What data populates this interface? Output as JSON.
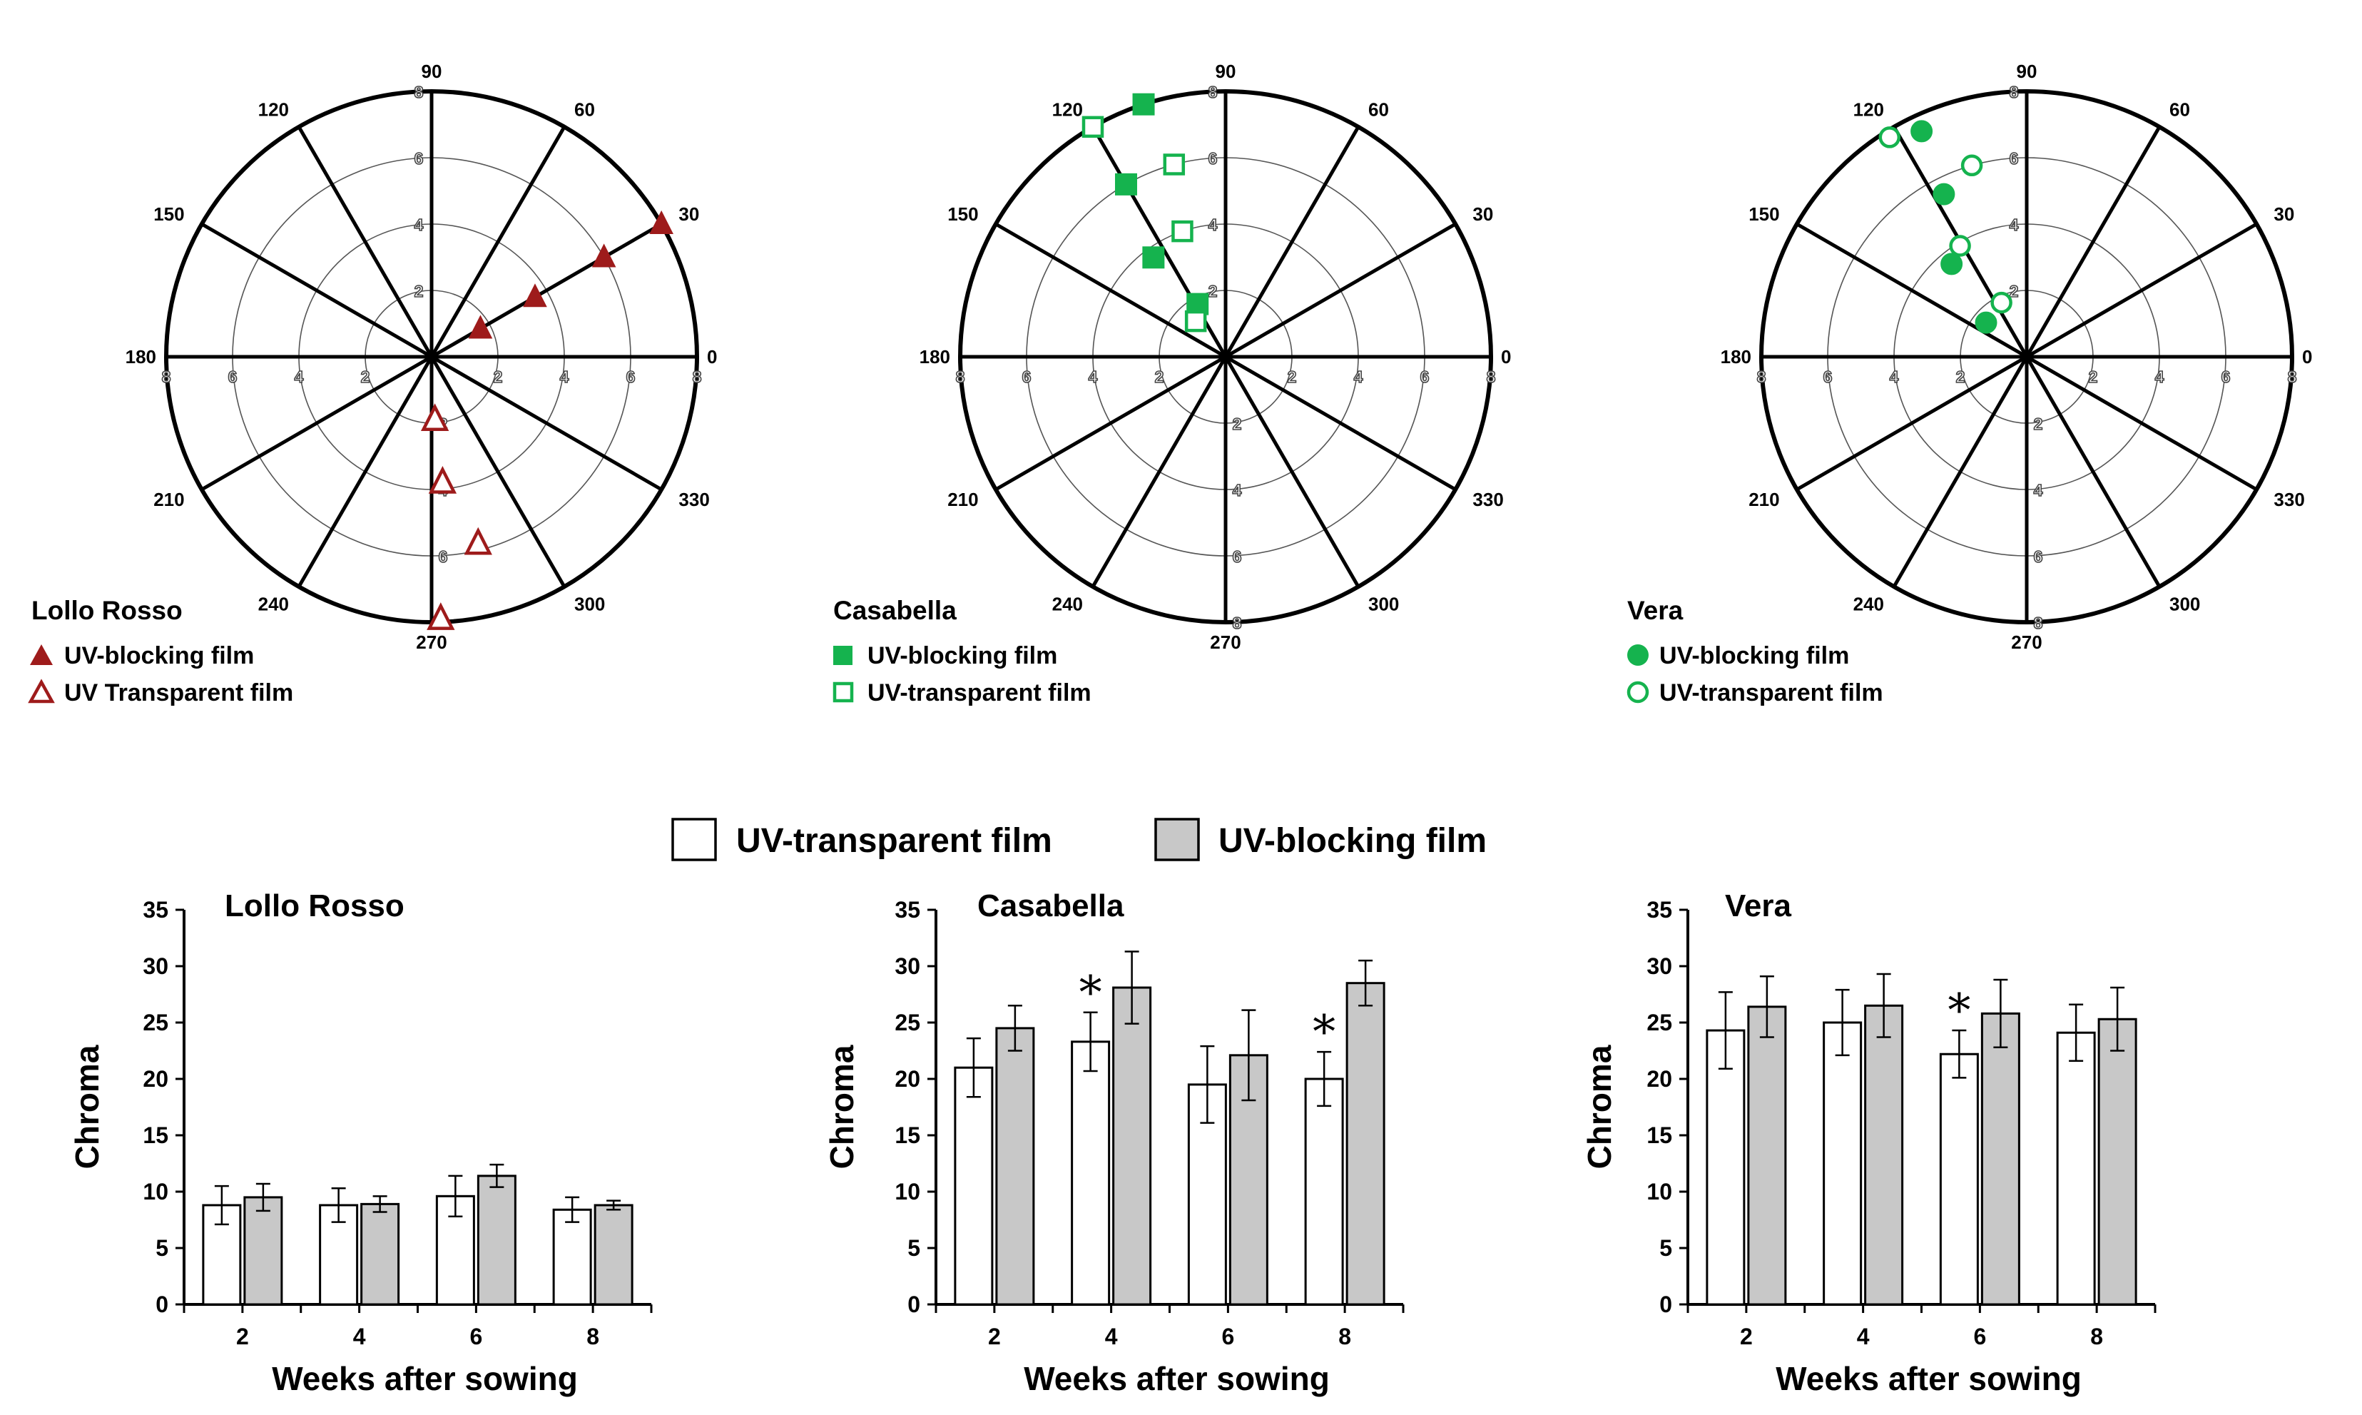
{
  "polar_legends": [
    {
      "title": "Lollo Rosso",
      "blocking": "UV-blocking film",
      "transparent": "UV Transparent film"
    },
    {
      "title": "Casabella",
      "blocking": "UV-blocking film",
      "transparent": "UV-transparent film"
    },
    {
      "title": "Vera",
      "blocking": "UV-blocking film",
      "transparent": "UV-transparent film"
    }
  ],
  "bar_legend": {
    "transparent": "UV-transparent film",
    "blocking": "UV-blocking film"
  },
  "colors": {
    "lollo": "#9e1b1b",
    "green": "#15b34e",
    "bar_transparent": "#ffffff",
    "bar_blocking": "#c8c8c8"
  },
  "chart_data": [
    {
      "type": "scatter",
      "coordinate_system": "polar",
      "title": "Lollo Rosso",
      "angle_labels": [
        "0",
        "30",
        "60",
        "90",
        "120",
        "150",
        "180",
        "210",
        "240",
        "270",
        "300",
        "330"
      ],
      "radial_ticks": [
        "2",
        "4",
        "6",
        "8"
      ],
      "radial_max": 8,
      "marker": "triangle",
      "color": "#9e1b1b",
      "series": [
        {
          "name": "UV-blocking film",
          "filled": true,
          "points": [
            {
              "r": 1.7,
              "angle": 30
            },
            {
              "r": 3.6,
              "angle": 30
            },
            {
              "r": 6.0,
              "angle": 30
            },
            {
              "r": 8.0,
              "angle": 30
            }
          ]
        },
        {
          "name": "UV Transparent film",
          "filled": false,
          "points": [
            {
              "r": 1.9,
              "angle": 273
            },
            {
              "r": 3.8,
              "angle": 275
            },
            {
              "r": 5.8,
              "angle": 284
            },
            {
              "r": 7.9,
              "angle": 272
            }
          ]
        }
      ]
    },
    {
      "type": "scatter",
      "coordinate_system": "polar",
      "title": "Casabella",
      "angle_labels": [
        "0",
        "30",
        "60",
        "90",
        "120",
        "150",
        "180",
        "210",
        "240",
        "270",
        "300",
        "330"
      ],
      "radial_ticks": [
        "2",
        "4",
        "6",
        "8"
      ],
      "radial_max": 8,
      "marker": "square",
      "color": "#15b34e",
      "series": [
        {
          "name": "UV-blocking film",
          "filled": true,
          "points": [
            {
              "r": 1.8,
              "angle": 118
            },
            {
              "r": 3.7,
              "angle": 126
            },
            {
              "r": 6.0,
              "angle": 120
            },
            {
              "r": 8.0,
              "angle": 108
            }
          ]
        },
        {
          "name": "UV-transparent film",
          "filled": false,
          "points": [
            {
              "r": 1.4,
              "angle": 130
            },
            {
              "r": 4.0,
              "angle": 109
            },
            {
              "r": 6.0,
              "angle": 105
            },
            {
              "r": 8.0,
              "angle": 120
            }
          ]
        }
      ]
    },
    {
      "type": "scatter",
      "coordinate_system": "polar",
      "title": "Vera",
      "angle_labels": [
        "0",
        "30",
        "60",
        "90",
        "120",
        "150",
        "180",
        "210",
        "240",
        "270",
        "300",
        "330"
      ],
      "radial_ticks": [
        "2",
        "4",
        "6",
        "8"
      ],
      "radial_max": 8,
      "marker": "circle",
      "color": "#15b34e",
      "series": [
        {
          "name": "UV-blocking film",
          "filled": true,
          "points": [
            {
              "r": 1.6,
              "angle": 140
            },
            {
              "r": 3.6,
              "angle": 129
            },
            {
              "r": 5.5,
              "angle": 117
            },
            {
              "r": 7.5,
              "angle": 115
            }
          ]
        },
        {
          "name": "UV-transparent film",
          "filled": false,
          "points": [
            {
              "r": 1.8,
              "angle": 115
            },
            {
              "r": 3.9,
              "angle": 121
            },
            {
              "r": 6.0,
              "angle": 106
            },
            {
              "r": 7.8,
              "angle": 122
            }
          ]
        }
      ]
    },
    {
      "type": "bar",
      "title": "Lollo Rosso",
      "xlabel": "Weeks after sowing",
      "ylabel": "Chroma",
      "categories": [
        "2",
        "4",
        "6",
        "8"
      ],
      "ylim": [
        0,
        35
      ],
      "yticks": [
        "0",
        "5",
        "10",
        "15",
        "20",
        "25",
        "30",
        "35"
      ],
      "series": [
        {
          "name": "UV-transparent film",
          "values": [
            8.8,
            8.8,
            9.6,
            8.4
          ],
          "errors": [
            1.7,
            1.5,
            1.8,
            1.1
          ]
        },
        {
          "name": "UV-blocking film",
          "values": [
            9.5,
            8.9,
            11.4,
            8.8
          ],
          "errors": [
            1.2,
            0.7,
            1.0,
            0.4
          ]
        }
      ],
      "significance": []
    },
    {
      "type": "bar",
      "title": "Casabella",
      "xlabel": "Weeks after sowing",
      "ylabel": "Chroma",
      "categories": [
        "2",
        "4",
        "6",
        "8"
      ],
      "ylim": [
        0,
        35
      ],
      "yticks": [
        "0",
        "5",
        "10",
        "15",
        "20",
        "25",
        "30",
        "35"
      ],
      "series": [
        {
          "name": "UV-transparent film",
          "values": [
            21.0,
            23.3,
            19.5,
            20.0
          ],
          "errors": [
            2.6,
            2.6,
            3.4,
            2.4
          ]
        },
        {
          "name": "UV-blocking film",
          "values": [
            24.5,
            28.1,
            22.1,
            28.5
          ],
          "errors": [
            2.0,
            3.2,
            4.0,
            2.0
          ]
        }
      ],
      "significance": [
        {
          "category": "4",
          "label": "*"
        },
        {
          "category": "8",
          "label": "*"
        }
      ]
    },
    {
      "type": "bar",
      "title": "Vera",
      "xlabel": "Weeks after sowing",
      "ylabel": "Chroma",
      "categories": [
        "2",
        "4",
        "6",
        "8"
      ],
      "ylim": [
        0,
        35
      ],
      "yticks": [
        "0",
        "5",
        "10",
        "15",
        "20",
        "25",
        "30",
        "35"
      ],
      "series": [
        {
          "name": "UV-transparent film",
          "values": [
            24.3,
            25.0,
            22.2,
            24.1
          ],
          "errors": [
            3.4,
            2.9,
            2.1,
            2.5
          ]
        },
        {
          "name": "UV-blocking film",
          "values": [
            26.4,
            26.5,
            25.8,
            25.3
          ],
          "errors": [
            2.7,
            2.8,
            3.0,
            2.8
          ]
        }
      ],
      "significance": [
        {
          "category": "6",
          "label": "*"
        }
      ]
    }
  ]
}
